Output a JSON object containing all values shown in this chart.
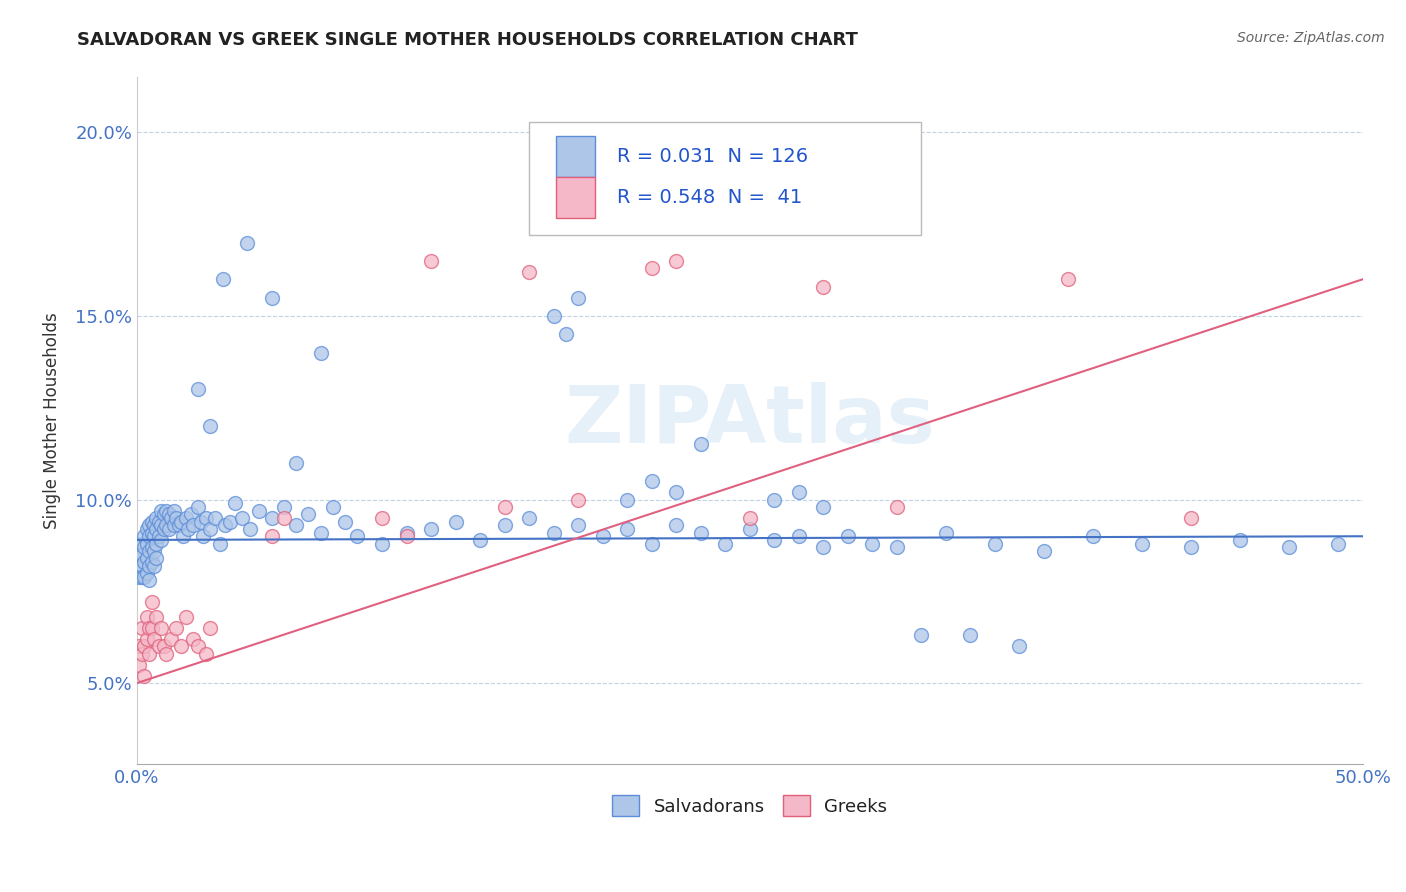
{
  "title": "SALVADORAN VS GREEK SINGLE MOTHER HOUSEHOLDS CORRELATION CHART",
  "source": "Source: ZipAtlas.com",
  "ylabel": "Single Mother Households",
  "xlim": [
    0.0,
    0.5
  ],
  "ylim": [
    0.028,
    0.215
  ],
  "ytick_labels": [
    "5.0%",
    "10.0%",
    "15.0%",
    "20.0%"
  ],
  "ytick_vals": [
    0.05,
    0.1,
    0.15,
    0.2
  ],
  "xtick_labels": [
    "0.0%",
    "",
    "",
    "",
    "",
    "",
    "",
    "",
    "",
    "",
    "50.0%"
  ],
  "xtick_vals": [
    0.0,
    0.05,
    0.1,
    0.15,
    0.2,
    0.25,
    0.3,
    0.35,
    0.4,
    0.45,
    0.5
  ],
  "salvadoran_color": "#aec6e8",
  "greek_color": "#f4b8c8",
  "salvadoran_edge_color": "#5b8dd9",
  "greek_edge_color": "#e0607a",
  "salvadoran_line_color": "#4472c4",
  "greek_line_color": "#e06080",
  "R_salvadoran": 0.031,
  "N_salvadoran": 126,
  "R_greek": 0.548,
  "N_greek": 41,
  "watermark": "ZIPAtlas",
  "background_color": "#ffffff",
  "grid_color": "#c0d4e8",
  "tick_color": "#4472c4",
  "sal_line_intercept": 0.089,
  "sal_line_slope": 0.002,
  "grk_line_intercept": 0.05,
  "grk_line_slope": 0.22,
  "salvadoran_x": [
    0.001,
    0.001,
    0.001,
    0.002,
    0.002,
    0.002,
    0.002,
    0.003,
    0.003,
    0.003,
    0.003,
    0.004,
    0.004,
    0.004,
    0.004,
    0.005,
    0.005,
    0.005,
    0.005,
    0.005,
    0.006,
    0.006,
    0.006,
    0.006,
    0.007,
    0.007,
    0.007,
    0.007,
    0.008,
    0.008,
    0.008,
    0.008,
    0.009,
    0.009,
    0.01,
    0.01,
    0.01,
    0.011,
    0.011,
    0.012,
    0.012,
    0.013,
    0.013,
    0.014,
    0.015,
    0.015,
    0.016,
    0.017,
    0.018,
    0.019,
    0.02,
    0.021,
    0.022,
    0.023,
    0.025,
    0.026,
    0.027,
    0.028,
    0.03,
    0.032,
    0.034,
    0.036,
    0.038,
    0.04,
    0.043,
    0.046,
    0.05,
    0.055,
    0.06,
    0.065,
    0.07,
    0.075,
    0.08,
    0.085,
    0.09,
    0.1,
    0.11,
    0.12,
    0.13,
    0.14,
    0.15,
    0.16,
    0.17,
    0.18,
    0.19,
    0.2,
    0.21,
    0.22,
    0.23,
    0.24,
    0.25,
    0.26,
    0.27,
    0.28,
    0.29,
    0.3,
    0.31,
    0.33,
    0.35,
    0.37,
    0.39,
    0.41,
    0.43,
    0.45,
    0.47,
    0.49,
    0.025,
    0.03,
    0.035,
    0.045,
    0.055,
    0.065,
    0.075,
    0.17,
    0.175,
    0.18,
    0.2,
    0.21,
    0.22,
    0.23,
    0.26,
    0.27,
    0.28,
    0.32,
    0.34,
    0.36
  ],
  "salvadoran_y": [
    0.085,
    0.082,
    0.079,
    0.088,
    0.085,
    0.082,
    0.079,
    0.09,
    0.087,
    0.083,
    0.079,
    0.092,
    0.088,
    0.084,
    0.08,
    0.093,
    0.09,
    0.086,
    0.082,
    0.078,
    0.094,
    0.091,
    0.087,
    0.083,
    0.093,
    0.09,
    0.086,
    0.082,
    0.095,
    0.092,
    0.088,
    0.084,
    0.094,
    0.09,
    0.097,
    0.093,
    0.089,
    0.096,
    0.092,
    0.097,
    0.093,
    0.096,
    0.092,
    0.095,
    0.097,
    0.093,
    0.095,
    0.093,
    0.094,
    0.09,
    0.095,
    0.092,
    0.096,
    0.093,
    0.098,
    0.094,
    0.09,
    0.095,
    0.092,
    0.095,
    0.088,
    0.093,
    0.094,
    0.099,
    0.095,
    0.092,
    0.097,
    0.095,
    0.098,
    0.093,
    0.096,
    0.091,
    0.098,
    0.094,
    0.09,
    0.088,
    0.091,
    0.092,
    0.094,
    0.089,
    0.093,
    0.095,
    0.091,
    0.093,
    0.09,
    0.092,
    0.088,
    0.093,
    0.091,
    0.088,
    0.092,
    0.089,
    0.09,
    0.087,
    0.09,
    0.088,
    0.087,
    0.091,
    0.088,
    0.086,
    0.09,
    0.088,
    0.087,
    0.089,
    0.087,
    0.088,
    0.13,
    0.12,
    0.16,
    0.17,
    0.155,
    0.11,
    0.14,
    0.15,
    0.145,
    0.155,
    0.1,
    0.105,
    0.102,
    0.115,
    0.1,
    0.102,
    0.098,
    0.063,
    0.063,
    0.06
  ],
  "greek_x": [
    0.001,
    0.001,
    0.002,
    0.002,
    0.003,
    0.003,
    0.004,
    0.004,
    0.005,
    0.005,
    0.006,
    0.006,
    0.007,
    0.008,
    0.009,
    0.01,
    0.011,
    0.012,
    0.014,
    0.016,
    0.018,
    0.02,
    0.023,
    0.025,
    0.028,
    0.03,
    0.055,
    0.06,
    0.1,
    0.11,
    0.12,
    0.15,
    0.16,
    0.18,
    0.21,
    0.22,
    0.25,
    0.28,
    0.31,
    0.38,
    0.43
  ],
  "greek_y": [
    0.06,
    0.055,
    0.065,
    0.058,
    0.06,
    0.052,
    0.068,
    0.062,
    0.065,
    0.058,
    0.072,
    0.065,
    0.062,
    0.068,
    0.06,
    0.065,
    0.06,
    0.058,
    0.062,
    0.065,
    0.06,
    0.068,
    0.062,
    0.06,
    0.058,
    0.065,
    0.09,
    0.095,
    0.095,
    0.09,
    0.165,
    0.098,
    0.162,
    0.1,
    0.163,
    0.165,
    0.095,
    0.158,
    0.098,
    0.16,
    0.095
  ]
}
